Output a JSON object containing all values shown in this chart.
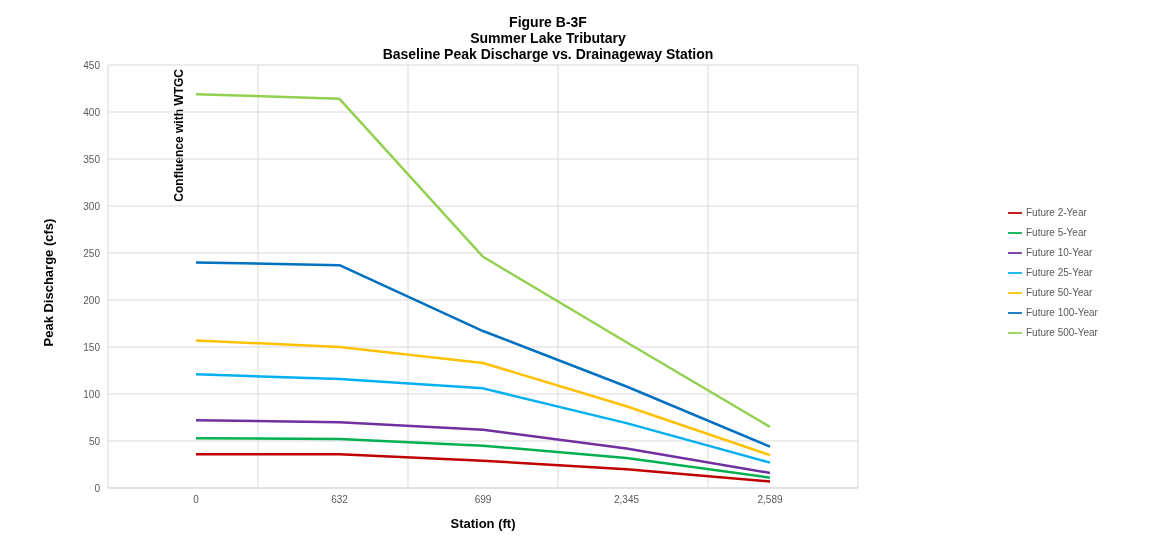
{
  "chart_data": {
    "type": "line",
    "title": "Figure B-3F\nSummer Lake Tributary\nBaseline Peak Discharge vs. Drainageway Station",
    "xlabel": "Station (ft)",
    "ylabel": "Peak Discharge (cfs)",
    "categories": [
      "0",
      "632",
      "699",
      "2,345",
      "2,589"
    ],
    "series": [
      {
        "name": "Future 2-Year",
        "color": "#c00000",
        "values": [
          36,
          36,
          29,
          20,
          7
        ]
      },
      {
        "name": "Future 5-Year",
        "color": "#00b050",
        "values": [
          53,
          52,
          45,
          32,
          11
        ]
      },
      {
        "name": "Future 10-Year",
        "color": "#7030a0",
        "values": [
          72,
          70,
          62,
          42,
          16
        ]
      },
      {
        "name": "Future 25-Year",
        "color": "#00b0f0",
        "values": [
          121,
          116,
          106,
          69,
          27
        ]
      },
      {
        "name": "Future 50-Year",
        "color": "#ffc000",
        "values": [
          157,
          150,
          133,
          87,
          35
        ]
      },
      {
        "name": "Future 100-Year",
        "color": "#0070c0",
        "values": [
          240,
          237,
          167,
          108,
          44
        ]
      },
      {
        "name": "Future 500-Year",
        "color": "#92d050",
        "values": [
          419,
          414,
          246,
          155,
          65
        ]
      }
    ],
    "ylim": [
      0,
      450
    ],
    "yticks": [
      0,
      50,
      100,
      150,
      200,
      250,
      300,
      350,
      400,
      450
    ],
    "annotations": [
      "Confluence with WTGC"
    ],
    "grid": true,
    "legend": "right",
    "marker": "none",
    "line_style": "solid"
  }
}
